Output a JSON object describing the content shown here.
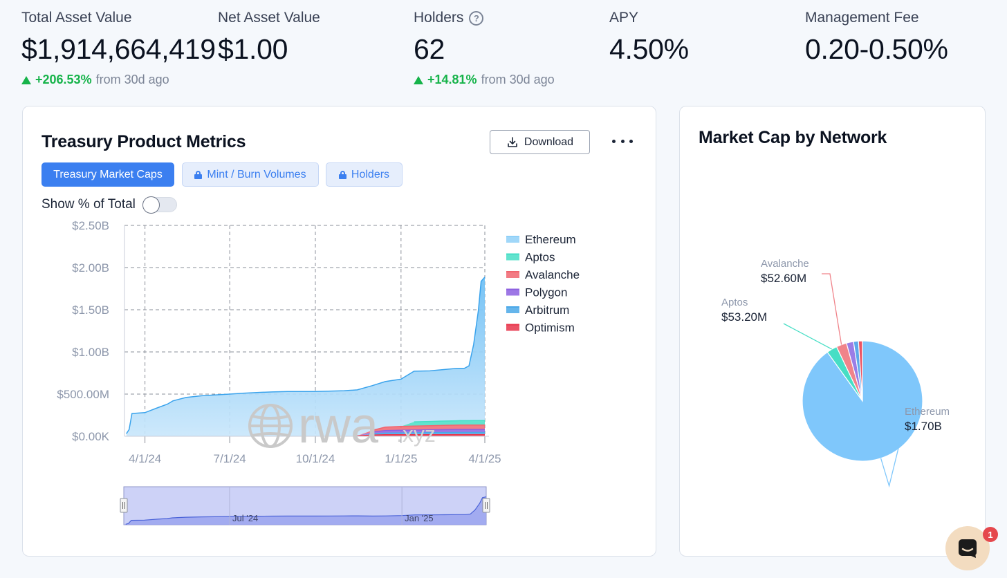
{
  "stats": {
    "total_asset_value": {
      "label": "Total Asset Value",
      "value": "$1,914,664,419",
      "change": "+206.53%",
      "from": "from 30d ago"
    },
    "net_asset_value": {
      "label": "Net Asset Value",
      "value": "$1.00"
    },
    "holders": {
      "label": "Holders",
      "help": "?",
      "value": "62",
      "change": "+14.81%",
      "from": "from 30d ago"
    },
    "apy": {
      "label": "APY",
      "value": "4.50%"
    },
    "management_fee": {
      "label": "Management Fee",
      "value": "0.20-0.50%"
    }
  },
  "main_card": {
    "title": "Treasury Product Metrics",
    "download_label": "Download",
    "tabs": [
      {
        "label": "Treasury Market Caps",
        "active": true,
        "locked": false
      },
      {
        "label": "Mint / Burn Volumes",
        "active": false,
        "locked": true
      },
      {
        "label": "Holders",
        "active": false,
        "locked": true
      }
    ],
    "toggle_label": "Show % of Total",
    "toggle_on": false,
    "watermark": {
      "main": "rwa",
      "suffix": ".xyz"
    },
    "navigator_labels": [
      "Jul '24",
      "Jan '25"
    ]
  },
  "pie_card": {
    "title": "Market Cap by Network"
  },
  "chart_data": [
    {
      "type": "area",
      "stacked": true,
      "title": "",
      "ylabel": "",
      "xlabel": "",
      "y_ticks": [
        "$0.00K",
        "$500.00M",
        "$1.00B",
        "$1.50B",
        "$2.00B",
        "$2.50B"
      ],
      "ylim": [
        0,
        2500000000
      ],
      "x_ticks": [
        "4/1/24",
        "7/1/24",
        "10/1/24",
        "1/1/25",
        "4/1/25"
      ],
      "x": [
        "2024-03-12",
        "2024-03-15",
        "2024-03-18",
        "2024-04-01",
        "2024-04-15",
        "2024-04-25",
        "2024-05-01",
        "2024-05-15",
        "2024-06-01",
        "2024-06-15",
        "2024-07-01",
        "2024-07-15",
        "2024-08-01",
        "2024-08-15",
        "2024-09-01",
        "2024-09-15",
        "2024-10-01",
        "2024-10-15",
        "2024-11-01",
        "2024-11-15",
        "2024-12-01",
        "2024-12-15",
        "2025-01-01",
        "2025-01-15",
        "2025-02-01",
        "2025-02-15",
        "2025-03-01",
        "2025-03-05",
        "2025-03-10",
        "2025-03-15",
        "2025-03-20",
        "2025-03-25",
        "2025-03-28",
        "2025-04-01"
      ],
      "legend_position": "right",
      "grid": true,
      "colors": {
        "Ethereum": "#8fd0f8",
        "Aptos": "#46dec5",
        "Avalanche": "#f0646e",
        "Polygon": "#8c5fe0",
        "Arbitrum": "#4aa8e8",
        "Optimism": "#e8344a"
      },
      "series": [
        {
          "name": "Ethereum",
          "values": [
            30000000,
            80000000,
            270000000,
            280000000,
            340000000,
            380000000,
            420000000,
            460000000,
            480000000,
            490000000,
            500000000,
            510000000,
            520000000,
            525000000,
            530000000,
            530000000,
            530000000,
            535000000,
            540000000,
            545000000,
            530000000,
            540000000,
            560000000,
            600000000,
            600000000,
            610000000,
            620000000,
            620000000,
            620000000,
            650000000,
            900000000,
            1300000000,
            1650000000,
            1700000000
          ]
        },
        {
          "name": "Aptos",
          "values": [
            0,
            0,
            0,
            0,
            0,
            0,
            0,
            0,
            0,
            0,
            0,
            0,
            0,
            0,
            0,
            0,
            0,
            0,
            0,
            0,
            0,
            0,
            0,
            50000000,
            50000000,
            51000000,
            52000000,
            52000000,
            52000000,
            52000000,
            53000000,
            53000000,
            53200000,
            53200000
          ]
        },
        {
          "name": "Avalanche",
          "values": [
            0,
            0,
            0,
            0,
            0,
            0,
            0,
            0,
            0,
            0,
            0,
            0,
            0,
            0,
            0,
            0,
            0,
            0,
            0,
            0,
            20000000,
            40000000,
            45000000,
            47000000,
            48000000,
            50000000,
            51000000,
            52000000,
            52000000,
            52600000,
            52600000,
            52600000,
            52600000,
            52600000
          ]
        },
        {
          "name": "Polygon",
          "values": [
            0,
            0,
            0,
            0,
            0,
            0,
            0,
            0,
            0,
            0,
            0,
            0,
            0,
            0,
            0,
            0,
            0,
            0,
            0,
            0,
            20000000,
            30000000,
            32000000,
            33000000,
            34000000,
            35000000,
            36000000,
            36000000,
            36000000,
            36000000,
            36000000,
            36000000,
            36000000,
            36000000
          ]
        },
        {
          "name": "Arbitrum",
          "values": [
            0,
            0,
            0,
            0,
            0,
            0,
            0,
            0,
            0,
            0,
            0,
            0,
            0,
            0,
            0,
            0,
            0,
            0,
            0,
            0,
            15000000,
            20000000,
            22000000,
            23000000,
            24000000,
            25000000,
            25000000,
            25000000,
            25000000,
            25000000,
            25000000,
            25000000,
            25000000,
            25000000
          ]
        },
        {
          "name": "Optimism",
          "values": [
            0,
            0,
            0,
            0,
            0,
            0,
            0,
            0,
            0,
            0,
            0,
            0,
            0,
            0,
            0,
            0,
            0,
            0,
            0,
            5000000,
            15000000,
            18000000,
            18000000,
            18000000,
            19000000,
            19000000,
            20000000,
            20000000,
            20000000,
            20000000,
            20000000,
            20000000,
            20000000,
            20000000
          ]
        }
      ]
    },
    {
      "type": "pie",
      "title": "",
      "slices": [
        {
          "name": "Ethereum",
          "label": "$1.70B",
          "value": 1700000000,
          "color": "#7fc7fb",
          "labeled": true
        },
        {
          "name": "Aptos",
          "label": "$53.20M",
          "value": 53200000,
          "color": "#46dec5",
          "labeled": true
        },
        {
          "name": "Avalanche",
          "label": "$52.60M",
          "value": 52600000,
          "color": "#f0838a",
          "labeled": true
        },
        {
          "name": "Polygon",
          "value": 36000000,
          "color": "#9b7de6",
          "labeled": false
        },
        {
          "name": "Arbitrum",
          "value": 25000000,
          "color": "#5ea8ea",
          "labeled": false
        },
        {
          "name": "Optimism",
          "value": 20000000,
          "color": "#ec5363",
          "labeled": false
        }
      ]
    }
  ]
}
